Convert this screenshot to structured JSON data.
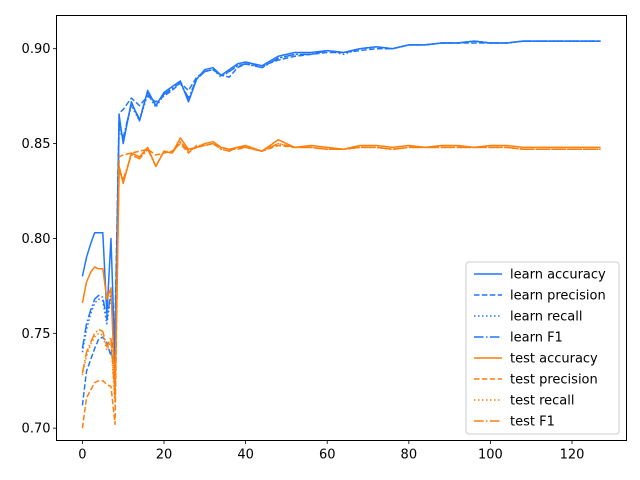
{
  "chart_data": {
    "type": "line",
    "title": "",
    "xlabel": "",
    "ylabel": "",
    "xlim": [
      -6.35,
      133.35
    ],
    "ylim": [
      0.6935,
      0.9175
    ],
    "xticks": [
      0,
      20,
      40,
      60,
      80,
      100,
      120
    ],
    "xtick_labels": [
      "0",
      "20",
      "40",
      "60",
      "80",
      "100",
      "120"
    ],
    "yticks": [
      0.7,
      0.75,
      0.8,
      0.85,
      0.9
    ],
    "ytick_labels": [
      "0.70",
      "0.75",
      "0.80",
      "0.85",
      "0.90"
    ],
    "grid": false,
    "legend_position": "lower right",
    "colors": {
      "learn": "#1f77ff",
      "test": "#ff7f0e"
    },
    "x": [
      0,
      1,
      2,
      3,
      4,
      5,
      6,
      7,
      8,
      9,
      10,
      12,
      14,
      16,
      18,
      20,
      22,
      24,
      26,
      28,
      30,
      32,
      34,
      36,
      38,
      40,
      44,
      48,
      52,
      56,
      60,
      64,
      68,
      72,
      76,
      80,
      84,
      88,
      92,
      96,
      100,
      104,
      108,
      112,
      116,
      120,
      124,
      127
    ],
    "series": [
      {
        "name": "learn accuracy",
        "color": "#1f77ff",
        "dash": "solid",
        "values": [
          0.78,
          0.79,
          0.797,
          0.803,
          0.803,
          0.803,
          0.76,
          0.8,
          0.735,
          0.865,
          0.85,
          0.872,
          0.862,
          0.878,
          0.87,
          0.877,
          0.88,
          0.883,
          0.872,
          0.884,
          0.889,
          0.89,
          0.886,
          0.889,
          0.892,
          0.893,
          0.891,
          0.896,
          0.898,
          0.898,
          0.899,
          0.898,
          0.9,
          0.901,
          0.9,
          0.902,
          0.902,
          0.903,
          0.903,
          0.904,
          0.903,
          0.903,
          0.904,
          0.904,
          0.904,
          0.904,
          0.904,
          0.904
        ]
      },
      {
        "name": "learn precision",
        "color": "#1f77ff",
        "dash": "dashed",
        "values": [
          0.712,
          0.73,
          0.736,
          0.742,
          0.747,
          0.748,
          0.745,
          0.738,
          0.755,
          0.866,
          0.868,
          0.874,
          0.87,
          0.875,
          0.872,
          0.875,
          0.878,
          0.882,
          0.878,
          0.885,
          0.888,
          0.889,
          0.886,
          0.885,
          0.89,
          0.892,
          0.891,
          0.894,
          0.896,
          0.897,
          0.898,
          0.898,
          0.899,
          0.9,
          0.9,
          0.902,
          0.902,
          0.903,
          0.903,
          0.903,
          0.903,
          0.903,
          0.904,
          0.904,
          0.904,
          0.904,
          0.904,
          0.904
        ]
      },
      {
        "name": "learn recall",
        "color": "#1f77ff",
        "dash": "dotted",
        "values": [
          0.74,
          0.752,
          0.76,
          0.766,
          0.768,
          0.767,
          0.755,
          0.77,
          0.745,
          0.858,
          0.852,
          0.87,
          0.862,
          0.876,
          0.869,
          0.876,
          0.879,
          0.882,
          0.873,
          0.884,
          0.888,
          0.889,
          0.885,
          0.888,
          0.891,
          0.892,
          0.89,
          0.895,
          0.897,
          0.897,
          0.899,
          0.897,
          0.9,
          0.901,
          0.9,
          0.902,
          0.902,
          0.903,
          0.903,
          0.904,
          0.903,
          0.903,
          0.904,
          0.904,
          0.904,
          0.904,
          0.904,
          0.904
        ]
      },
      {
        "name": "learn F1",
        "color": "#1f77ff",
        "dash": "dashdot",
        "values": [
          0.742,
          0.755,
          0.762,
          0.768,
          0.77,
          0.769,
          0.757,
          0.772,
          0.748,
          0.86,
          0.853,
          0.871,
          0.863,
          0.877,
          0.87,
          0.876,
          0.879,
          0.882,
          0.874,
          0.884,
          0.888,
          0.889,
          0.886,
          0.888,
          0.891,
          0.892,
          0.89,
          0.895,
          0.897,
          0.897,
          0.899,
          0.898,
          0.9,
          0.901,
          0.9,
          0.902,
          0.902,
          0.903,
          0.903,
          0.904,
          0.903,
          0.903,
          0.904,
          0.904,
          0.904,
          0.904,
          0.904,
          0.904
        ]
      },
      {
        "name": "test accuracy",
        "color": "#ff7f0e",
        "dash": "solid",
        "values": [
          0.766,
          0.777,
          0.782,
          0.785,
          0.784,
          0.784,
          0.768,
          0.774,
          0.72,
          0.838,
          0.829,
          0.845,
          0.843,
          0.848,
          0.838,
          0.846,
          0.845,
          0.853,
          0.847,
          0.848,
          0.85,
          0.851,
          0.848,
          0.847,
          0.848,
          0.849,
          0.846,
          0.852,
          0.848,
          0.849,
          0.848,
          0.847,
          0.849,
          0.849,
          0.848,
          0.849,
          0.848,
          0.849,
          0.849,
          0.848,
          0.849,
          0.849,
          0.848,
          0.848,
          0.848,
          0.848,
          0.848,
          0.848
        ]
      },
      {
        "name": "test precision",
        "color": "#ff7f0e",
        "dash": "dashed",
        "values": [
          0.7,
          0.716,
          0.72,
          0.724,
          0.725,
          0.725,
          0.723,
          0.722,
          0.702,
          0.843,
          0.844,
          0.845,
          0.846,
          0.847,
          0.844,
          0.845,
          0.846,
          0.85,
          0.845,
          0.849,
          0.849,
          0.85,
          0.848,
          0.847,
          0.847,
          0.848,
          0.846,
          0.849,
          0.848,
          0.848,
          0.847,
          0.847,
          0.848,
          0.848,
          0.847,
          0.848,
          0.848,
          0.848,
          0.848,
          0.848,
          0.848,
          0.848,
          0.847,
          0.847,
          0.847,
          0.847,
          0.847,
          0.847
        ]
      },
      {
        "name": "test recall",
        "color": "#ff7f0e",
        "dash": "dotted",
        "values": [
          0.728,
          0.738,
          0.744,
          0.748,
          0.75,
          0.749,
          0.741,
          0.746,
          0.712,
          0.836,
          0.83,
          0.844,
          0.842,
          0.847,
          0.838,
          0.846,
          0.845,
          0.851,
          0.846,
          0.848,
          0.849,
          0.85,
          0.847,
          0.846,
          0.848,
          0.848,
          0.846,
          0.85,
          0.848,
          0.848,
          0.847,
          0.847,
          0.848,
          0.848,
          0.847,
          0.848,
          0.848,
          0.848,
          0.848,
          0.848,
          0.848,
          0.848,
          0.847,
          0.847,
          0.847,
          0.847,
          0.847,
          0.847
        ]
      },
      {
        "name": "test F1",
        "color": "#ff7f0e",
        "dash": "dashdot",
        "values": [
          0.729,
          0.74,
          0.745,
          0.75,
          0.752,
          0.751,
          0.743,
          0.748,
          0.715,
          0.837,
          0.831,
          0.844,
          0.842,
          0.847,
          0.838,
          0.846,
          0.845,
          0.851,
          0.846,
          0.848,
          0.849,
          0.85,
          0.847,
          0.846,
          0.848,
          0.848,
          0.846,
          0.85,
          0.848,
          0.848,
          0.847,
          0.847,
          0.848,
          0.848,
          0.847,
          0.848,
          0.848,
          0.848,
          0.848,
          0.848,
          0.848,
          0.848,
          0.847,
          0.847,
          0.847,
          0.847,
          0.847,
          0.847
        ]
      }
    ]
  }
}
